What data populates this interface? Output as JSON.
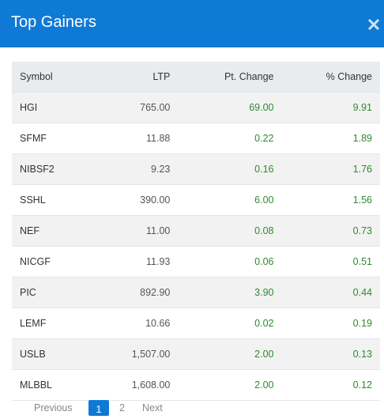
{
  "header": {
    "title": "Top Gainers"
  },
  "table": {
    "columns": [
      "Symbol",
      "LTP",
      "Pt. Change",
      "% Change"
    ],
    "rows": [
      [
        "HGI",
        "765.00",
        "69.00",
        "9.91"
      ],
      [
        "SFMF",
        "11.88",
        "0.22",
        "1.89"
      ],
      [
        "NIBSF2",
        "9.23",
        "0.16",
        "1.76"
      ],
      [
        "SSHL",
        "390.00",
        "6.00",
        "1.56"
      ],
      [
        "NEF",
        "11.00",
        "0.08",
        "0.73"
      ],
      [
        "NICGF",
        "11.93",
        "0.06",
        "0.51"
      ],
      [
        "PIC",
        "892.90",
        "3.90",
        "0.44"
      ],
      [
        "LEMF",
        "10.66",
        "0.02",
        "0.19"
      ],
      [
        "USLB",
        "1,507.00",
        "2.00",
        "0.13"
      ],
      [
        "MLBBL",
        "1,608.00",
        "2.00",
        "0.12"
      ]
    ]
  },
  "pagination": {
    "previous": "Previous",
    "pages": [
      "1",
      "2"
    ],
    "next": "Next"
  }
}
